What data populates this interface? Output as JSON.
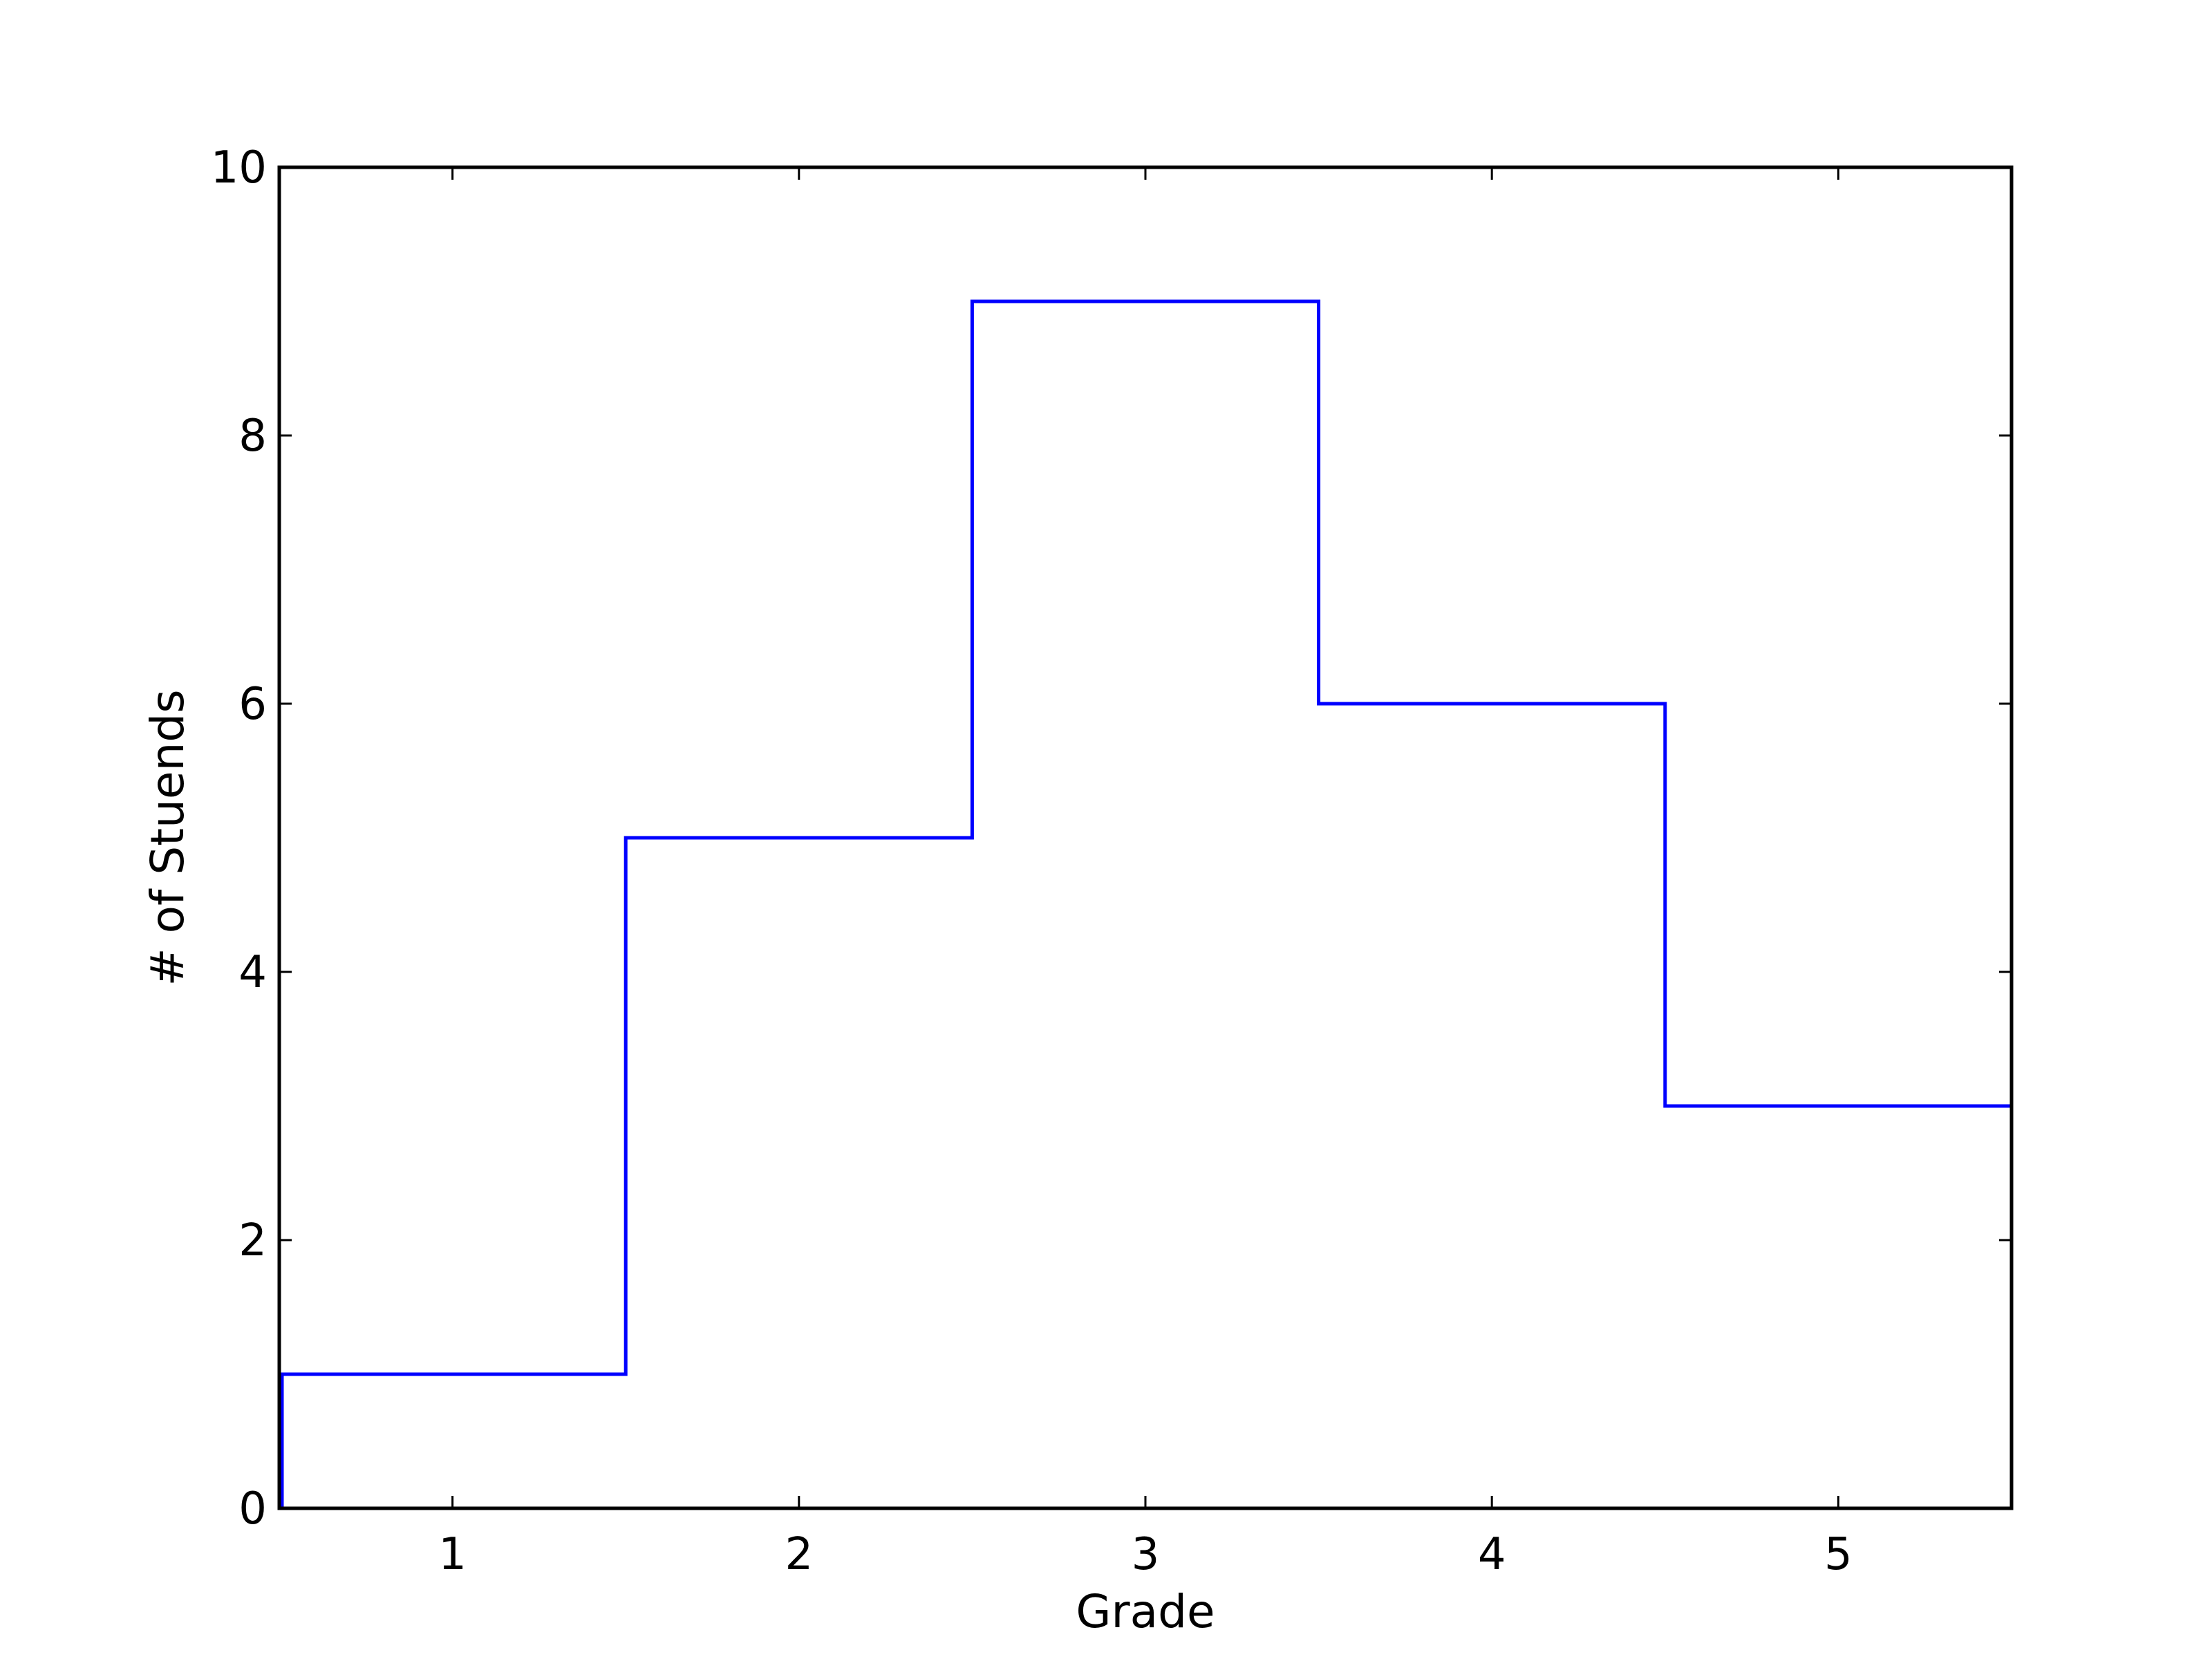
{
  "chart_data": {
    "type": "histogram-step",
    "xlabel": "Grade",
    "ylabel": "# of Stuends",
    "xlim": [
      0.5,
      5.5
    ],
    "ylim": [
      0,
      10
    ],
    "x_ticks": [
      1,
      2,
      3,
      4,
      5
    ],
    "x_tick_labels": [
      "1",
      "2",
      "3",
      "4",
      "5"
    ],
    "y_ticks": [
      0,
      2,
      4,
      6,
      8,
      10
    ],
    "y_tick_labels": [
      "0",
      "2",
      "4",
      "6",
      "8",
      "10"
    ],
    "bins": [
      {
        "start": 0.5,
        "end": 1.5,
        "value": 1
      },
      {
        "start": 1.5,
        "end": 2.5,
        "value": 5
      },
      {
        "start": 2.5,
        "end": 3.5,
        "value": 9
      },
      {
        "start": 3.5,
        "end": 4.5,
        "value": 6
      },
      {
        "start": 4.5,
        "end": 5.5,
        "value": 3
      }
    ],
    "line_color": "#0000ff",
    "grid": false
  }
}
